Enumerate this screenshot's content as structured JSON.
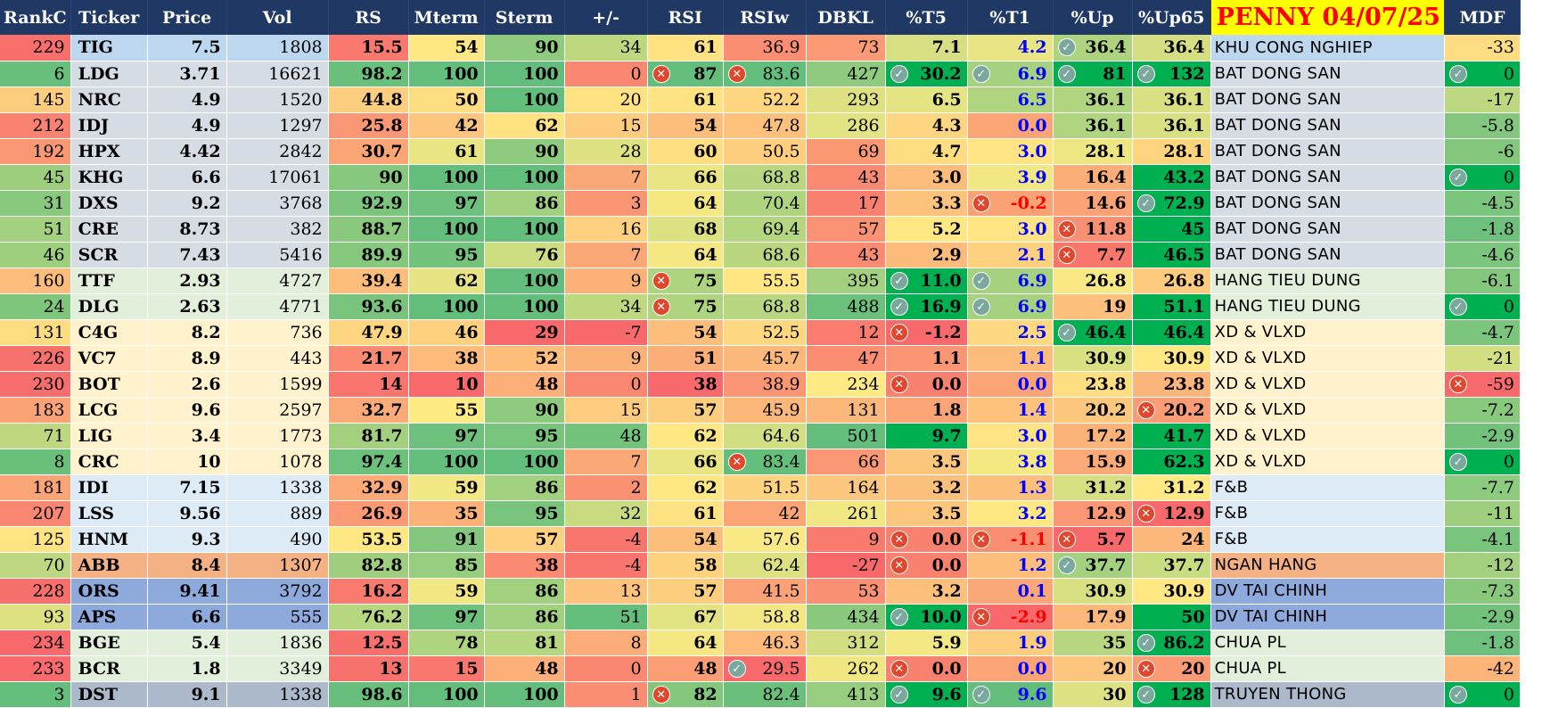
{
  "sheet_title": "PENNY 04/07/25",
  "columns": [
    "RankC",
    "Ticker",
    "Price",
    "Vol",
    "RS",
    "Mterm",
    "Sterm",
    "+/-",
    "RSI",
    "RSIw",
    "DBKL",
    "%T5",
    "%T1",
    "%Up",
    "%Up65",
    "PENNY 04/07/25",
    "MDF"
  ],
  "colors": {
    "header_bg": "#1f3864",
    "header_text": "#ffffff",
    "title_bg": "#ffff00",
    "title_text": "#ff0000",
    "t1_positive": "#0000ff",
    "t1_negative": "#ff0000",
    "check_icon": "#7aa89c",
    "cross_icon": "#e0472c"
  },
  "sector_colors": {
    "KHU CONG NGHIEP": "#bdd7ee",
    "BAT DONG SAN": "#d6dce4",
    "HANG TIEU DUNG": "#e2efda",
    "XD & VLXD": "#fff2cc",
    "F&B": "#ddebf7",
    "NGAN HANG": "#f4b183",
    "DV TAI CHINH": "#8ea9db",
    "CHUA PL": "#e2efda",
    "TRUYEN THONG": "#acb9ca"
  },
  "rows": [
    [
      "229",
      "TIG",
      "7.5",
      "1808",
      "15.5",
      "54",
      "90",
      "34",
      "61",
      "36.9",
      "73",
      "7.1",
      "4.2",
      "36.4",
      "36.4",
      "KHU CONG NGHIEP",
      "-33"
    ],
    [
      "6",
      "LDG",
      "3.71",
      "16621",
      "98.2",
      "100",
      "100",
      "0",
      "87",
      "83.6",
      "427",
      "30.2",
      "6.9",
      "81",
      "132",
      "BAT DONG SAN",
      "0"
    ],
    [
      "145",
      "NRC",
      "4.9",
      "1520",
      "44.8",
      "50",
      "100",
      "20",
      "61",
      "52.2",
      "293",
      "6.5",
      "6.5",
      "36.1",
      "36.1",
      "BAT DONG SAN",
      "-17"
    ],
    [
      "212",
      "IDJ",
      "4.9",
      "1297",
      "25.8",
      "42",
      "62",
      "15",
      "54",
      "47.8",
      "286",
      "4.3",
      "0.0",
      "36.1",
      "36.1",
      "BAT DONG SAN",
      "-5.8"
    ],
    [
      "192",
      "HPX",
      "4.42",
      "2842",
      "30.7",
      "61",
      "90",
      "28",
      "60",
      "50.5",
      "69",
      "4.7",
      "3.0",
      "28.1",
      "28.1",
      "BAT DONG SAN",
      "-6"
    ],
    [
      "45",
      "KHG",
      "6.6",
      "17061",
      "90",
      "100",
      "100",
      "7",
      "66",
      "68.8",
      "43",
      "3.0",
      "3.9",
      "16.4",
      "43.2",
      "BAT DONG SAN",
      "0"
    ],
    [
      "31",
      "DXS",
      "9.2",
      "3768",
      "92.9",
      "97",
      "86",
      "3",
      "64",
      "70.4",
      "17",
      "3.3",
      "-0.2",
      "14.6",
      "72.9",
      "BAT DONG SAN",
      "-4.5"
    ],
    [
      "51",
      "CRE",
      "8.73",
      "382",
      "88.7",
      "100",
      "100",
      "16",
      "68",
      "69.4",
      "57",
      "5.2",
      "3.0",
      "11.8",
      "45",
      "BAT DONG SAN",
      "-1.8"
    ],
    [
      "46",
      "SCR",
      "7.43",
      "5416",
      "89.9",
      "95",
      "76",
      "7",
      "64",
      "68.6",
      "43",
      "2.9",
      "2.1",
      "7.7",
      "46.5",
      "BAT DONG SAN",
      "-4.6"
    ],
    [
      "160",
      "TTF",
      "2.93",
      "4727",
      "39.4",
      "62",
      "100",
      "9",
      "75",
      "55.5",
      "395",
      "11.0",
      "6.9",
      "26.8",
      "26.8",
      "HANG TIEU DUNG",
      "-6.1"
    ],
    [
      "24",
      "DLG",
      "2.63",
      "4771",
      "93.6",
      "100",
      "100",
      "34",
      "75",
      "68.8",
      "488",
      "16.9",
      "6.9",
      "19",
      "51.1",
      "HANG TIEU DUNG",
      "0"
    ],
    [
      "131",
      "C4G",
      "8.2",
      "736",
      "47.9",
      "46",
      "29",
      "-7",
      "54",
      "52.5",
      "12",
      "-1.2",
      "2.5",
      "46.4",
      "46.4",
      "XD & VLXD",
      "-4.7"
    ],
    [
      "226",
      "VC7",
      "8.9",
      "443",
      "21.7",
      "38",
      "52",
      "9",
      "51",
      "45.7",
      "47",
      "1.1",
      "1.1",
      "30.9",
      "30.9",
      "XD & VLXD",
      "-21"
    ],
    [
      "230",
      "BOT",
      "2.6",
      "1599",
      "14",
      "10",
      "48",
      "0",
      "38",
      "38.9",
      "234",
      "0.0",
      "0.0",
      "23.8",
      "23.8",
      "XD & VLXD",
      "-59"
    ],
    [
      "183",
      "LCG",
      "9.6",
      "2597",
      "32.7",
      "55",
      "90",
      "15",
      "57",
      "45.9",
      "131",
      "1.8",
      "1.4",
      "20.2",
      "20.2",
      "XD & VLXD",
      "-7.2"
    ],
    [
      "71",
      "LIG",
      "3.4",
      "1773",
      "81.7",
      "97",
      "95",
      "48",
      "62",
      "64.6",
      "501",
      "9.7",
      "3.0",
      "17.2",
      "41.7",
      "XD & VLXD",
      "-2.9"
    ],
    [
      "8",
      "CRC",
      "10",
      "1078",
      "97.4",
      "100",
      "100",
      "7",
      "66",
      "83.4",
      "66",
      "3.5",
      "3.8",
      "15.9",
      "62.3",
      "XD & VLXD",
      "0"
    ],
    [
      "181",
      "IDI",
      "7.15",
      "1338",
      "32.9",
      "59",
      "86",
      "2",
      "62",
      "51.5",
      "164",
      "3.2",
      "1.3",
      "31.2",
      "31.2",
      "F&B",
      "-7.7"
    ],
    [
      "207",
      "LSS",
      "9.56",
      "889",
      "26.9",
      "35",
      "95",
      "32",
      "61",
      "42",
      "261",
      "3.5",
      "3.2",
      "12.9",
      "12.9",
      "F&B",
      "-11"
    ],
    [
      "125",
      "HNM",
      "9.3",
      "490",
      "53.5",
      "91",
      "57",
      "-4",
      "54",
      "57.6",
      "9",
      "0.0",
      "-1.1",
      "5.7",
      "24",
      "F&B",
      "-4.1"
    ],
    [
      "70",
      "ABB",
      "8.4",
      "1307",
      "82.8",
      "85",
      "38",
      "-4",
      "58",
      "62.4",
      "-27",
      "0.0",
      "1.2",
      "37.7",
      "37.7",
      "NGAN HANG",
      "-12"
    ],
    [
      "228",
      "ORS",
      "9.41",
      "3792",
      "16.2",
      "59",
      "86",
      "13",
      "57",
      "41.5",
      "53",
      "3.2",
      "0.1",
      "30.9",
      "30.9",
      "DV TAI CHINH",
      "-7.3"
    ],
    [
      "93",
      "APS",
      "6.6",
      "555",
      "76.2",
      "97",
      "86",
      "51",
      "67",
      "58.8",
      "434",
      "10.0",
      "-2.9",
      "17.9",
      "50",
      "DV TAI CHINH",
      "-2.9"
    ],
    [
      "234",
      "BGE",
      "5.4",
      "1836",
      "12.5",
      "78",
      "81",
      "8",
      "64",
      "46.3",
      "312",
      "5.9",
      "1.9",
      "35",
      "86.2",
      "CHUA PL",
      "-1.8"
    ],
    [
      "233",
      "BCR",
      "1.8",
      "3349",
      "13",
      "15",
      "48",
      "0",
      "48",
      "29.5",
      "262",
      "0.0",
      "0.0",
      "20",
      "20",
      "CHUA PL",
      "-42"
    ],
    [
      "3",
      "DST",
      "9.1",
      "1338",
      "98.6",
      "100",
      "100",
      "1",
      "82",
      "82.4",
      "413",
      "9.6",
      "9.6",
      "30",
      "128",
      "TRUYEN THONG",
      "0"
    ]
  ],
  "icons": [
    {
      "row": 0,
      "col": 13,
      "icon": "check-icon"
    },
    {
      "row": 1,
      "col": 8,
      "icon": "cross-icon"
    },
    {
      "row": 1,
      "col": 9,
      "icon": "cross-icon"
    },
    {
      "row": 1,
      "col": 11,
      "icon": "check-icon"
    },
    {
      "row": 1,
      "col": 12,
      "icon": "check-icon"
    },
    {
      "row": 1,
      "col": 13,
      "icon": "check-icon"
    },
    {
      "row": 1,
      "col": 14,
      "icon": "check-icon"
    },
    {
      "row": 1,
      "col": 16,
      "icon": "check-icon"
    },
    {
      "row": 5,
      "col": 16,
      "icon": "check-icon"
    },
    {
      "row": 6,
      "col": 12,
      "icon": "cross-icon"
    },
    {
      "row": 6,
      "col": 14,
      "icon": "check-icon"
    },
    {
      "row": 7,
      "col": 13,
      "icon": "cross-icon"
    },
    {
      "row": 8,
      "col": 13,
      "icon": "cross-icon"
    },
    {
      "row": 9,
      "col": 8,
      "icon": "cross-icon"
    },
    {
      "row": 9,
      "col": 11,
      "icon": "check-icon"
    },
    {
      "row": 9,
      "col": 12,
      "icon": "check-icon"
    },
    {
      "row": 10,
      "col": 8,
      "icon": "cross-icon"
    },
    {
      "row": 10,
      "col": 11,
      "icon": "check-icon"
    },
    {
      "row": 10,
      "col": 12,
      "icon": "check-icon"
    },
    {
      "row": 10,
      "col": 16,
      "icon": "check-icon"
    },
    {
      "row": 11,
      "col": 11,
      "icon": "cross-icon"
    },
    {
      "row": 11,
      "col": 13,
      "icon": "check-icon"
    },
    {
      "row": 13,
      "col": 11,
      "icon": "cross-icon"
    },
    {
      "row": 13,
      "col": 16,
      "icon": "cross-icon"
    },
    {
      "row": 14,
      "col": 14,
      "icon": "cross-icon"
    },
    {
      "row": 16,
      "col": 9,
      "icon": "cross-icon"
    },
    {
      "row": 16,
      "col": 16,
      "icon": "check-icon"
    },
    {
      "row": 18,
      "col": 14,
      "icon": "cross-icon"
    },
    {
      "row": 19,
      "col": 11,
      "icon": "cross-icon"
    },
    {
      "row": 19,
      "col": 12,
      "icon": "cross-icon"
    },
    {
      "row": 19,
      "col": 13,
      "icon": "cross-icon"
    },
    {
      "row": 20,
      "col": 11,
      "icon": "cross-icon"
    },
    {
      "row": 20,
      "col": 13,
      "icon": "check-icon"
    },
    {
      "row": 22,
      "col": 11,
      "icon": "check-icon"
    },
    {
      "row": 22,
      "col": 12,
      "icon": "cross-icon"
    },
    {
      "row": 23,
      "col": 14,
      "icon": "check-icon"
    },
    {
      "row": 24,
      "col": 9,
      "icon": "check-icon"
    },
    {
      "row": 24,
      "col": 11,
      "icon": "cross-icon"
    },
    {
      "row": 24,
      "col": 14,
      "icon": "cross-icon"
    },
    {
      "row": 25,
      "col": 8,
      "icon": "cross-icon"
    },
    {
      "row": 25,
      "col": 11,
      "icon": "check-icon"
    },
    {
      "row": 25,
      "col": 12,
      "icon": "check-icon"
    },
    {
      "row": 25,
      "col": 14,
      "icon": "check-icon"
    },
    {
      "row": 25,
      "col": 16,
      "icon": "check-icon"
    }
  ]
}
